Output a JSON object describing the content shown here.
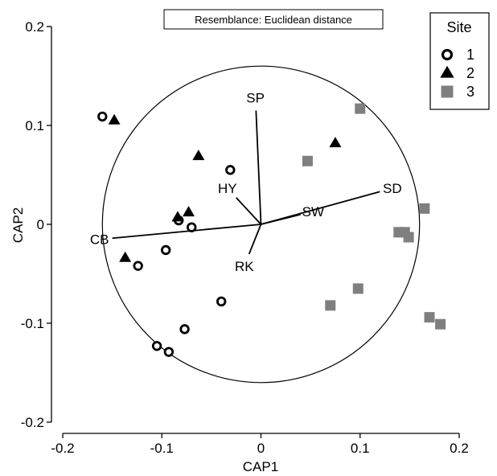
{
  "chart_data": {
    "type": "scatter",
    "annotation": "Resemblance: Euclidean distance",
    "xlabel": "CAP1",
    "ylabel": "CAP2",
    "xlim": [
      -0.2,
      0.2
    ],
    "ylim": [
      -0.2,
      0.2
    ],
    "x_ticks": [
      -0.2,
      -0.1,
      0,
      0.1,
      0.2
    ],
    "x_tick_labels": [
      "-0.2",
      "-0.1",
      "0",
      "0.1",
      "0.2"
    ],
    "y_ticks": [
      -0.2,
      -0.1,
      0,
      0.1,
      0.2
    ],
    "y_tick_labels": [
      "-0.2",
      "-0.1",
      "0",
      "0.1",
      "0.2"
    ],
    "grid": false,
    "correlation_circle": {
      "center": [
        0,
        0
      ],
      "radius": 0.16
    },
    "legend": {
      "title": "Site",
      "placement": "top-right",
      "entries": [
        {
          "label": "1",
          "marker": "circle-open",
          "color": "#000000"
        },
        {
          "label": "2",
          "marker": "triangle",
          "color": "#000000"
        },
        {
          "label": "3",
          "marker": "square",
          "color": "#7f7f7f"
        }
      ]
    },
    "vectors": [
      {
        "label": "SP",
        "x": -0.005,
        "y": 0.115
      },
      {
        "label": "SD",
        "x": 0.12,
        "y": 0.033
      },
      {
        "label": "SW",
        "x": 0.04,
        "y": 0.01
      },
      {
        "label": "HY",
        "x": -0.025,
        "y": 0.027
      },
      {
        "label": "CB",
        "x": -0.15,
        "y": -0.014
      },
      {
        "label": "RK",
        "x": -0.012,
        "y": -0.03
      }
    ],
    "vector_label_color": "#000000",
    "series": [
      {
        "name": "1",
        "marker": "circle-open",
        "color": "#000000",
        "points": [
          {
            "x": -0.16,
            "y": 0.109
          },
          {
            "x": -0.031,
            "y": 0.055
          },
          {
            "x": -0.083,
            "y": 0.004
          },
          {
            "x": -0.07,
            "y": -0.003
          },
          {
            "x": -0.096,
            "y": -0.026
          },
          {
            "x": -0.124,
            "y": -0.042
          },
          {
            "x": -0.04,
            "y": -0.078
          },
          {
            "x": -0.077,
            "y": -0.106
          },
          {
            "x": -0.105,
            "y": -0.123
          },
          {
            "x": -0.093,
            "y": -0.129
          }
        ]
      },
      {
        "name": "2",
        "marker": "triangle",
        "color": "#000000",
        "points": [
          {
            "x": -0.148,
            "y": 0.105
          },
          {
            "x": -0.063,
            "y": 0.069
          },
          {
            "x": 0.075,
            "y": 0.082
          },
          {
            "x": -0.084,
            "y": 0.007
          },
          {
            "x": -0.073,
            "y": 0.012
          },
          {
            "x": -0.137,
            "y": -0.034
          }
        ]
      },
      {
        "name": "3",
        "marker": "square",
        "color": "#7f7f7f",
        "points": [
          {
            "x": 0.1,
            "y": 0.117
          },
          {
            "x": 0.047,
            "y": 0.064
          },
          {
            "x": 0.165,
            "y": 0.016
          },
          {
            "x": 0.139,
            "y": -0.008
          },
          {
            "x": 0.145,
            "y": -0.008
          },
          {
            "x": 0.149,
            "y": -0.013
          },
          {
            "x": 0.098,
            "y": -0.065
          },
          {
            "x": 0.07,
            "y": -0.082
          },
          {
            "x": 0.17,
            "y": -0.094
          },
          {
            "x": 0.181,
            "y": -0.101
          }
        ]
      }
    ]
  }
}
